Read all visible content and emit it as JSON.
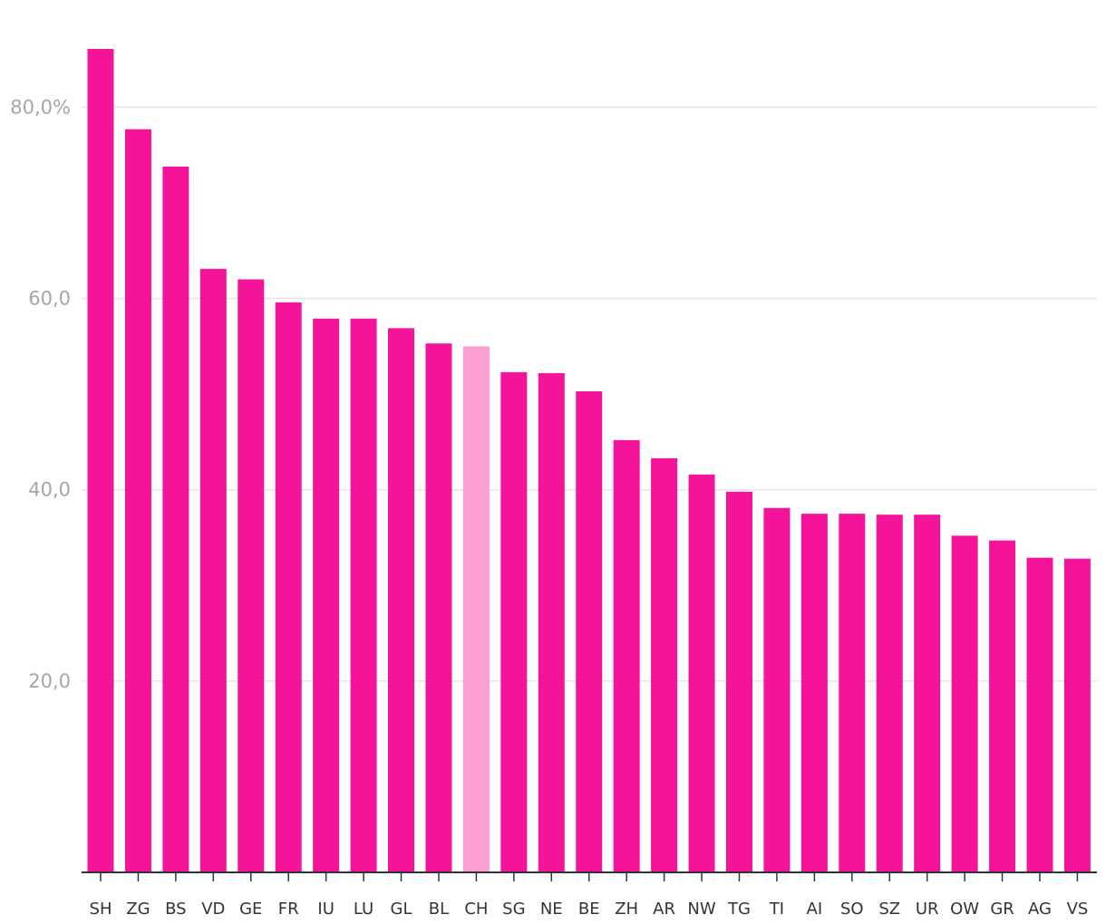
{
  "chart_data": {
    "type": "bar",
    "categories": [
      "SH",
      "ZG",
      "BS",
      "VD",
      "GE",
      "FR",
      "IU",
      "LU",
      "GL",
      "BL",
      "CH",
      "SG",
      "NE",
      "BE",
      "ZH",
      "AR",
      "NW",
      "TG",
      "TI",
      "AI",
      "SO",
      "SZ",
      "UR",
      "OW",
      "GR",
      "AG",
      "VS"
    ],
    "values": [
      86.1,
      77.7,
      73.8,
      63.1,
      62.0,
      59.6,
      57.9,
      57.9,
      56.9,
      55.3,
      55.0,
      52.3,
      52.2,
      50.3,
      45.2,
      43.3,
      41.6,
      39.8,
      38.1,
      37.5,
      37.5,
      37.4,
      37.4,
      35.2,
      34.7,
      32.9,
      32.8
    ],
    "highlight_category": "CH",
    "ylim": [
      0,
      86.1
    ],
    "yticks": [
      {
        "value": 20,
        "label": "20,0"
      },
      {
        "value": 40,
        "label": "40,0"
      },
      {
        "value": 60,
        "label": "60,0"
      },
      {
        "value": 80,
        "label": "80,0%"
      }
    ],
    "grid": true,
    "colors": {
      "bar": "#f5139a",
      "highlight": "#fb9fd2"
    }
  }
}
